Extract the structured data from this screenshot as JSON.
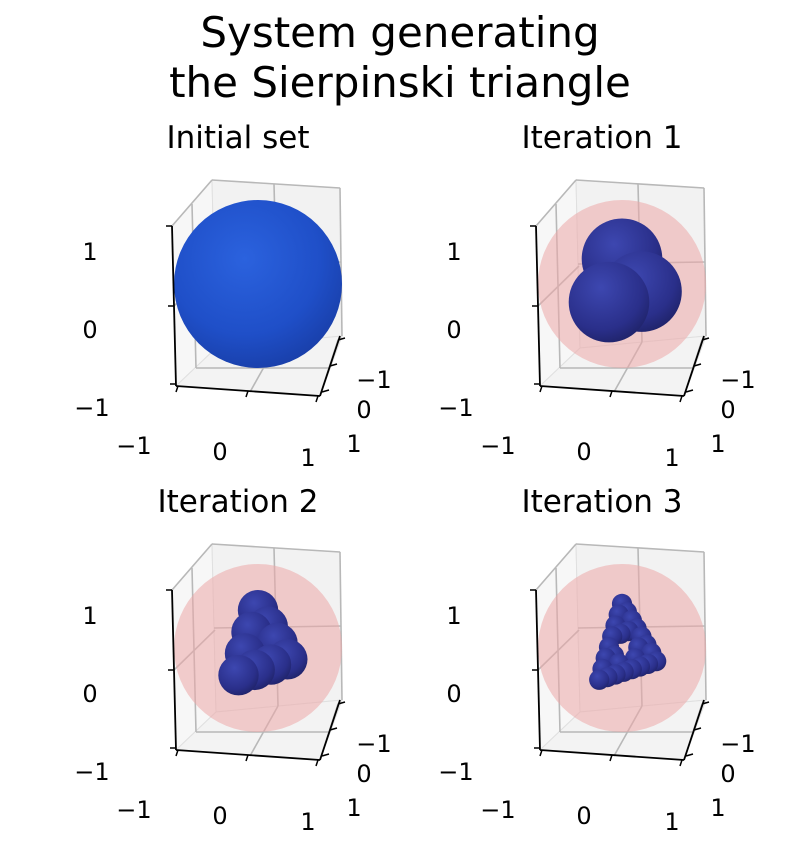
{
  "title_lines": [
    "System generating",
    "the Sierpinski triangle"
  ],
  "chart_data": {
    "type": "scatter",
    "series_kind": "3d-spheres",
    "xlim": [
      -1,
      1
    ],
    "ylim": [
      -1,
      1
    ],
    "zlim": [
      -1,
      1
    ],
    "x_ticks": [
      "−1",
      "0",
      "1"
    ],
    "y_ticks": [
      "−1",
      "0",
      "1"
    ],
    "z_ticks": [
      "−1",
      "0",
      "1"
    ],
    "colors": {
      "initial": "#1f4fc8",
      "iteration": "#2a2f8a",
      "halo": "#eca8a8"
    },
    "panels": [
      {
        "title": "Initial set",
        "iteration": 0,
        "sphere_count": 1,
        "radius": 1.0
      },
      {
        "title": "Iteration 1",
        "iteration": 1,
        "sphere_count": 3,
        "radius": 0.5
      },
      {
        "title": "Iteration 2",
        "iteration": 2,
        "sphere_count": 9,
        "radius": 0.25
      },
      {
        "title": "Iteration 3",
        "iteration": 3,
        "sphere_count": 27,
        "radius": 0.125
      }
    ]
  }
}
